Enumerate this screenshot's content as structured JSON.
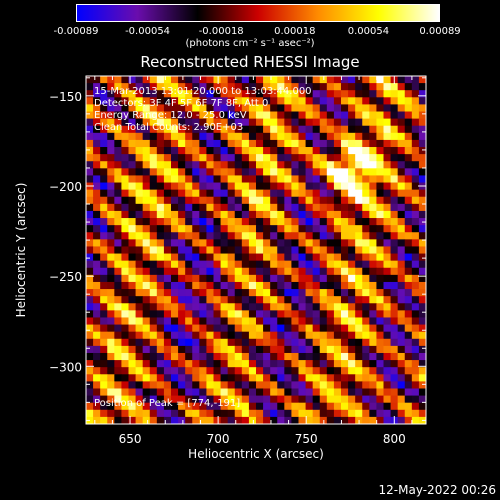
{
  "colorbar": {
    "ticks": [
      "-0.00089",
      "-0.00054",
      "-0.00018",
      "0.00018",
      "0.00054",
      "0.00089"
    ],
    "tick_values": [
      -0.00089,
      -0.00054,
      -0.00018,
      0.00018,
      0.00054,
      0.00089
    ],
    "unit_label": "(photons cm⁻² s⁻¹ asec⁻²)"
  },
  "chart_data": {
    "type": "heatmap",
    "title": "Reconstructed RHESSI Image",
    "xlabel": "Heliocentric X (arcsec)",
    "ylabel": "Heliocentric Y (arcsec)",
    "xlim": [
      625,
      818
    ],
    "ylim": [
      -332,
      -139
    ],
    "xticks": [
      650,
      700,
      750,
      800
    ],
    "yticks": [
      -150,
      -200,
      -250,
      -300
    ],
    "zlim": [
      -0.00089,
      0.00089
    ],
    "colormap": [
      "#0000ff",
      "#6a0dad",
      "#000000",
      "#cc0000",
      "#ff8c00",
      "#ffff00",
      "#ffffff"
    ],
    "peak": [
      774,
      -191
    ],
    "annotations": [
      "15-Mar-2013 13:01:20.000 to 13:03:44.000",
      "Detectors: 3F 4F 5F 6F 7F 8F, Att 0",
      "Energy Range: 12.0 - 25.0 keV",
      "Clean     Total Counts: 2.90E+03"
    ],
    "peak_label": "Position of Peak = [774,-191]"
  },
  "timestamp": "12-May-2022 00:26"
}
